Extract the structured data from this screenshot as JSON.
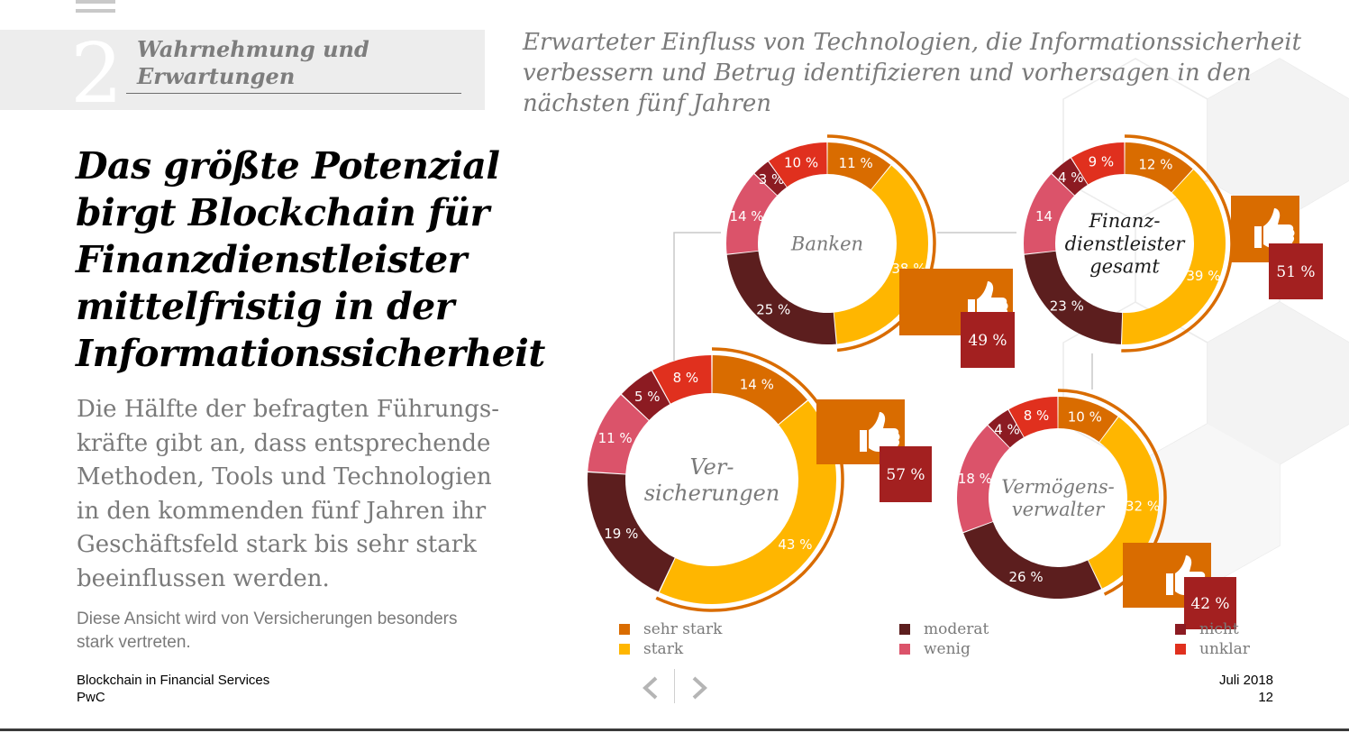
{
  "header": {
    "section_number": "2",
    "section_title_line1": "Wahrnehmung und",
    "section_title_line2": "Erwartungen"
  },
  "headline": {
    "line1": "Das größte Potenzial",
    "line2": "birgt Blockchain für",
    "line3": "Finanzdienstleister",
    "line4": "mittelfristig in der",
    "line5": "Informationssicherheit"
  },
  "body": {
    "line1": "Die Hälfte der befragten Führungs-",
    "line2": "kräfte gibt an, dass entsprechende",
    "line3": "Methoden, Tools und Technologien",
    "line4": "in den kommenden fünf Jahren ihr",
    "line5": "Geschäftsfeld stark bis sehr stark",
    "line6": "beeinflussen werden."
  },
  "note": {
    "line1": "Diese Ansicht wird von Versicherungen besonders",
    "line2": "stark vertreten."
  },
  "footer": {
    "title": "Blockchain in Financial Services",
    "company": "PwC",
    "date": "Juli 2018",
    "page": "12"
  },
  "colors": {
    "sehr_stark": "#d96c00",
    "stark": "#ffb600",
    "moderat": "#5c1e1e",
    "wenig": "#db536a",
    "nicht": "#8c1b22",
    "unklar": "#e0301e",
    "callout_orange": "#d96c00",
    "callout_red": "#a32020",
    "title_gray": "#7a7a7a"
  },
  "chart_data": {
    "type": "pie",
    "variant": "donut",
    "title": "Erwarteter Einfluss von Technologien, die Informationssicherheit verbessern und Betrug identifizieren und vorhersagen in den nächsten fünf Jahren",
    "title_line1": "Erwarteter Einfluss von Technologien, die Informationssicherheit",
    "title_line2": "verbessern und Betrug identifizieren und vorhersagen in den",
    "title_line3": "nächsten fünf Jahren",
    "categories": [
      "sehr stark",
      "stark",
      "moderat",
      "wenig",
      "nicht",
      "unklar"
    ],
    "legend": [
      {
        "key": "sehr_stark",
        "label": "sehr stark"
      },
      {
        "key": "stark",
        "label": "stark"
      },
      {
        "key": "moderat",
        "label": "moderat"
      },
      {
        "key": "wenig",
        "label": "wenig"
      },
      {
        "key": "nicht",
        "label": "nicht"
      },
      {
        "key": "unklar",
        "label": "unklar"
      }
    ],
    "series": [
      {
        "name": "Banken",
        "label_lines": [
          "Banken"
        ],
        "values": [
          11,
          38,
          25,
          14,
          3,
          10
        ],
        "labels": [
          "11 %",
          "38 %",
          "25 %",
          "14 %",
          "3 %",
          "10 %"
        ],
        "highlight": "49 %",
        "highlight_value": 49
      },
      {
        "name": "Finanzdienstleister gesamt",
        "label_lines": [
          "Finanz-",
          "dienstleister",
          "gesamt"
        ],
        "values": [
          12,
          39,
          23,
          14,
          4,
          9
        ],
        "labels": [
          "12 %",
          "39 %",
          "23 %",
          "14",
          "4 %",
          "9 %"
        ],
        "highlight": "51 %",
        "highlight_value": 51
      },
      {
        "name": "Versicherungen",
        "label_lines": [
          "Ver-",
          "sicherungen"
        ],
        "values": [
          14,
          43,
          19,
          11,
          5,
          8
        ],
        "labels": [
          "14 %",
          "43 %",
          "19 %",
          "11 %",
          "5 %",
          "8 %"
        ],
        "highlight": "57 %",
        "highlight_value": 57
      },
      {
        "name": "Vermögensverwalter",
        "label_lines": [
          "Vermögens-",
          "verwalter"
        ],
        "values": [
          10,
          32,
          26,
          18,
          4,
          8
        ],
        "labels": [
          "10 %",
          "32 %",
          "26 %",
          "18 %",
          "4 %",
          "8 %"
        ],
        "highlight": "42 %",
        "highlight_value": 42
      }
    ]
  }
}
